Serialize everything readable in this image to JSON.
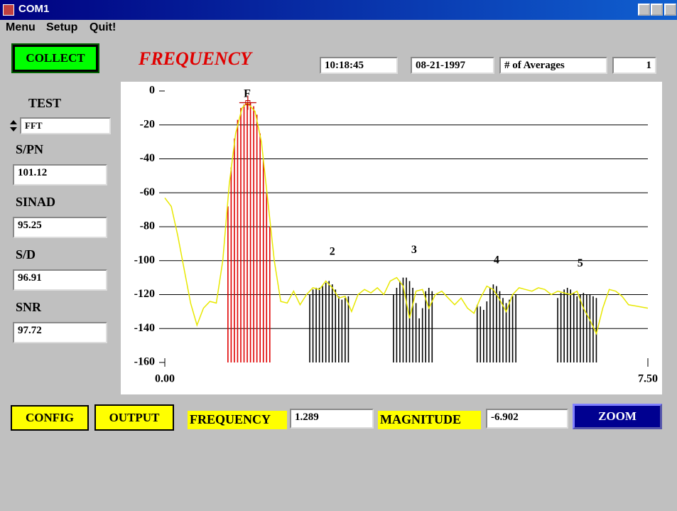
{
  "window": {
    "title": "COM1",
    "menu": [
      "Menu",
      "Setup",
      "Quit!"
    ]
  },
  "buttons": {
    "collect": "COLLECT",
    "config": "CONFIG",
    "output": "OUTPUT",
    "zoom": "ZOOM"
  },
  "header": {
    "time": "10:18:45",
    "date": "08-21-1997",
    "averages_label": "# of Averages",
    "averages": "1"
  },
  "side": {
    "test_label": "TEST",
    "test": "FFT",
    "fields": [
      {
        "label": "S/PN",
        "value": "101.12"
      },
      {
        "label": "SINAD",
        "value": "95.25"
      },
      {
        "label": "S/D",
        "value": "96.91"
      },
      {
        "label": "SNR",
        "value": "97.72"
      }
    ]
  },
  "bottom": {
    "frequency_label": "FREQUENCY",
    "frequency": 1.289,
    "magnitude_label": "MAGNITUDE",
    "magnitude": -6.902
  },
  "chart_data": {
    "type": "line",
    "title": "FREQUENCY",
    "xlim": [
      0,
      7.5
    ],
    "xticks": [
      {
        "value": 0,
        "label": "0.00"
      },
      {
        "value": 7.5,
        "label": "7.50"
      }
    ],
    "ylim": [
      -160,
      0
    ],
    "yticks": [
      0,
      -20,
      -40,
      -60,
      -80,
      -100,
      -120,
      -140,
      -160
    ],
    "grid": true,
    "series": [
      {
        "type": "line",
        "color": "#e8e800",
        "x": [
          0,
          0.1,
          0.2,
          0.3,
          0.4,
          0.5,
          0.6,
          0.7,
          0.8,
          0.9,
          1.0,
          1.1,
          1.2,
          1.28,
          1.4,
          1.5,
          1.6,
          1.7,
          1.8,
          1.9,
          2.0,
          2.1,
          2.2,
          2.3,
          2.4,
          2.5,
          2.6,
          2.7,
          2.8,
          2.9,
          3.0,
          3.1,
          3.2,
          3.3,
          3.4,
          3.5,
          3.6,
          3.7,
          3.8,
          3.9,
          4.0,
          4.1,
          4.2,
          4.3,
          4.4,
          4.5,
          4.6,
          4.7,
          4.8,
          4.9,
          5.0,
          5.1,
          5.2,
          5.3,
          5.4,
          5.5,
          5.6,
          5.7,
          5.8,
          5.9,
          6.0,
          6.1,
          6.2,
          6.3,
          6.4,
          6.5,
          6.6,
          6.7,
          6.8,
          6.9,
          7.0,
          7.1,
          7.2,
          7.5
        ],
        "values": [
          -63,
          -68,
          -85,
          -105,
          -125,
          -138,
          -128,
          -124,
          -125,
          -100,
          -55,
          -25,
          -10,
          -7,
          -12,
          -30,
          -65,
          -100,
          -124,
          -125,
          -118,
          -126,
          -120,
          -116,
          -117,
          -112,
          -116,
          -122,
          -121,
          -130,
          -120,
          -117,
          -119,
          -116,
          -120,
          -112,
          -110,
          -115,
          -134,
          -118,
          -117,
          -128,
          -120,
          -118,
          -122,
          -126,
          -122,
          -128,
          -131,
          -122,
          -115,
          -117,
          -123,
          -130,
          -120,
          -116,
          -117,
          -118,
          -116,
          -117,
          -120,
          -118,
          -119,
          -120,
          -118,
          -128,
          -135,
          -143,
          -128,
          -117,
          -118,
          -121,
          -126,
          -128
        ]
      },
      {
        "type": "bar",
        "color": "#e00000",
        "x": [
          0.98,
          1.03,
          1.08,
          1.13,
          1.18,
          1.23,
          1.28,
          1.33,
          1.38,
          1.43,
          1.48,
          1.53,
          1.58,
          1.63
        ],
        "values": [
          -68,
          -45,
          -28,
          -17,
          -10,
          -8,
          -7,
          -7,
          -9,
          -14,
          -25,
          -40,
          -60,
          -80
        ]
      },
      {
        "type": "bar",
        "color": "#000000",
        "x": [
          2.25,
          2.3,
          2.35,
          2.4,
          2.45,
          2.5,
          2.55,
          2.6,
          2.65,
          2.7,
          2.75,
          2.8,
          2.85,
          3.55,
          3.6,
          3.65,
          3.7,
          3.75,
          3.8,
          3.85,
          3.9,
          3.95,
          4.0,
          4.05,
          4.1,
          4.15,
          4.85,
          4.9,
          4.95,
          5.0,
          5.05,
          5.1,
          5.15,
          5.2,
          5.25,
          5.3,
          5.35,
          5.4,
          5.45,
          6.1,
          6.15,
          6.2,
          6.25,
          6.3,
          6.35,
          6.4,
          6.45,
          6.5,
          6.55,
          6.6,
          6.65,
          6.7
        ],
        "values": [
          -120,
          -117,
          -116,
          -116,
          -115,
          -113,
          -112,
          -114,
          -117,
          -121,
          -123,
          -122,
          -121,
          -120,
          -116,
          -112,
          -110,
          -110,
          -112,
          -116,
          -125,
          -134,
          -128,
          -118,
          -116,
          -118,
          -126,
          -127,
          -129,
          -124,
          -116,
          -114,
          -115,
          -118,
          -122,
          -125,
          -123,
          -121,
          -120,
          -122,
          -119,
          -117,
          -116,
          -117,
          -119,
          -121,
          -120,
          -119,
          -120,
          -120,
          -121,
          -122
        ]
      }
    ],
    "annotations": [
      {
        "text": "F",
        "x": 1.28,
        "y": -2
      },
      {
        "text": "2",
        "x": 2.6,
        "y": -95
      },
      {
        "text": "3",
        "x": 3.87,
        "y": -94
      },
      {
        "text": "4",
        "x": 5.15,
        "y": -100
      },
      {
        "text": "5",
        "x": 6.45,
        "y": -102
      }
    ]
  }
}
